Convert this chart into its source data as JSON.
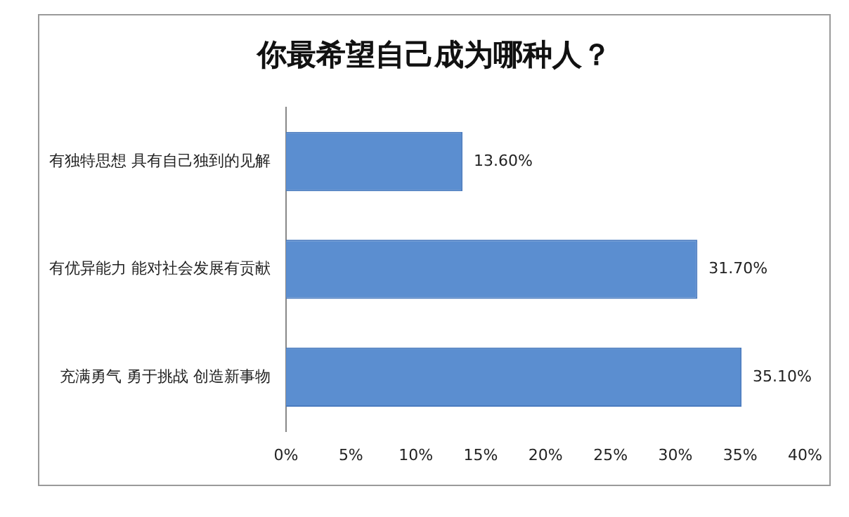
{
  "chart_data": {
    "type": "bar",
    "orientation": "horizontal",
    "title": "你最希望自己成为哪种人？",
    "categories": [
      "有独特思想 具有自己独到的见解",
      "有优异能力 能对社会发展有贡献",
      "充满勇气 勇于挑战 创造新事物"
    ],
    "values": [
      13.6,
      31.7,
      35.1
    ],
    "color": "#5b8ed0",
    "value_labels": [
      "13.60%",
      "31.70%",
      "35.10%"
    ],
    "xlim": [
      0,
      40
    ],
    "xticks": [
      {
        "value": 0,
        "label": "0%"
      },
      {
        "value": 5,
        "label": "5%"
      },
      {
        "value": 10,
        "label": "10%"
      },
      {
        "value": 15,
        "label": "15%"
      },
      {
        "value": 20,
        "label": "20%"
      },
      {
        "value": 25,
        "label": "25%"
      },
      {
        "value": 30,
        "label": "30%"
      },
      {
        "value": 35,
        "label": "35%"
      },
      {
        "value": 40,
        "label": "40%"
      }
    ],
    "grid": false,
    "legend": false
  }
}
